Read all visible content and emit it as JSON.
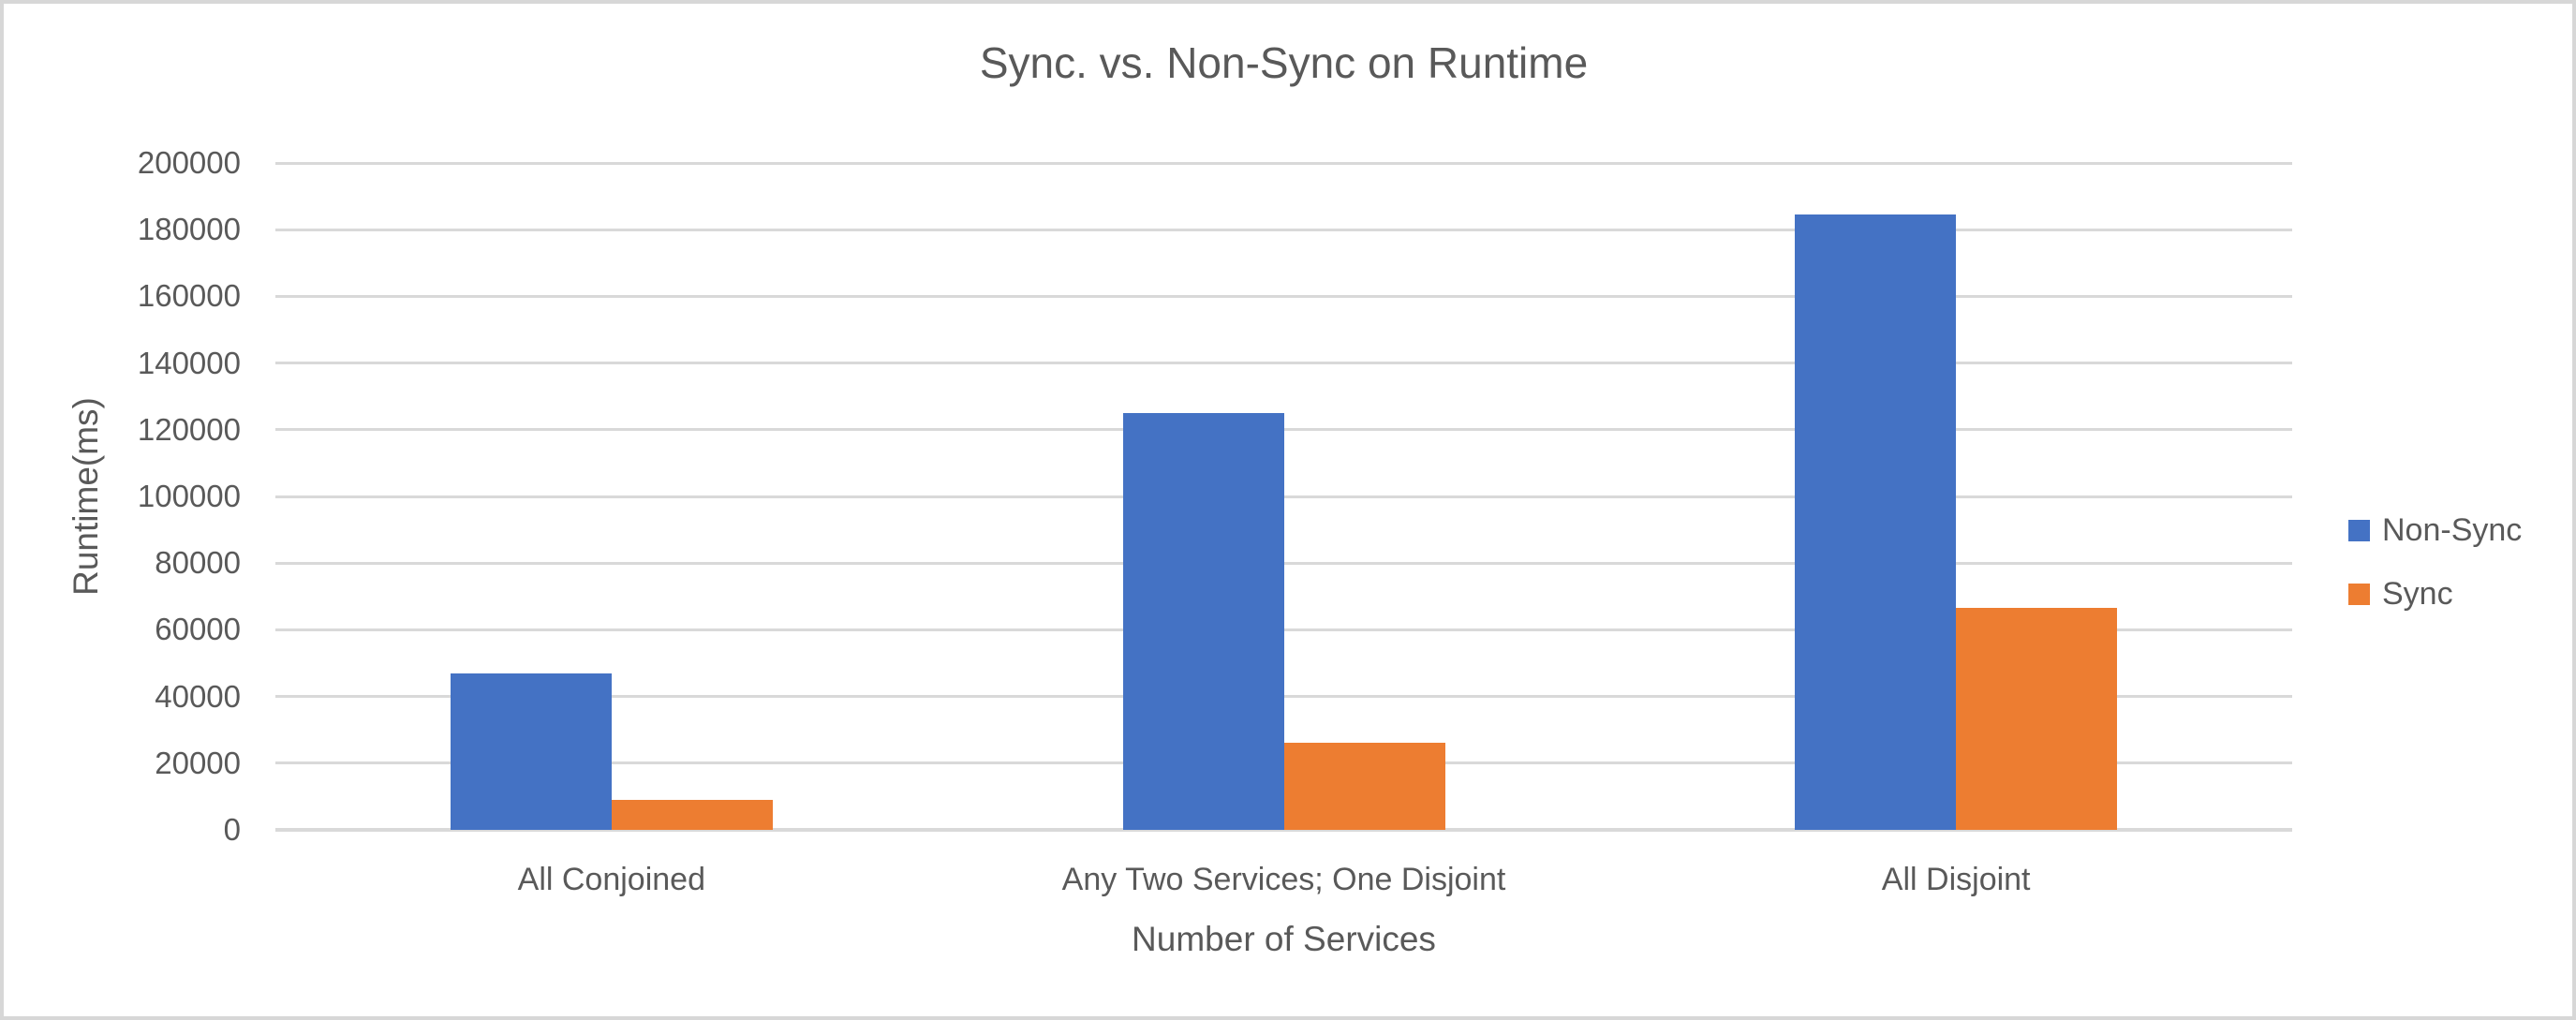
{
  "chart_data": {
    "type": "bar",
    "title": "Sync. vs. Non-Sync on Runtime",
    "xlabel": "Number of Services",
    "ylabel": "Runtime(ms)",
    "categories": [
      "All Conjoined",
      "Any Two Services; One Disjoint",
      "All Disjoint"
    ],
    "series": [
      {
        "name": "Non-Sync",
        "color": "#4472C4",
        "values": [
          47000,
          125000,
          184500
        ]
      },
      {
        "name": "Sync",
        "color": "#ED7D31",
        "values": [
          9000,
          26000,
          66500
        ]
      }
    ],
    "ylim": [
      0,
      200000
    ],
    "yticks": [
      0,
      20000,
      40000,
      60000,
      80000,
      100000,
      120000,
      140000,
      160000,
      180000,
      200000
    ],
    "grid": true,
    "legend_position": "right",
    "text_color": "#595959",
    "gridline_color": "#D9D9D9",
    "background_color": "#FFFFFF",
    "border_color": "#D7D7D7"
  }
}
